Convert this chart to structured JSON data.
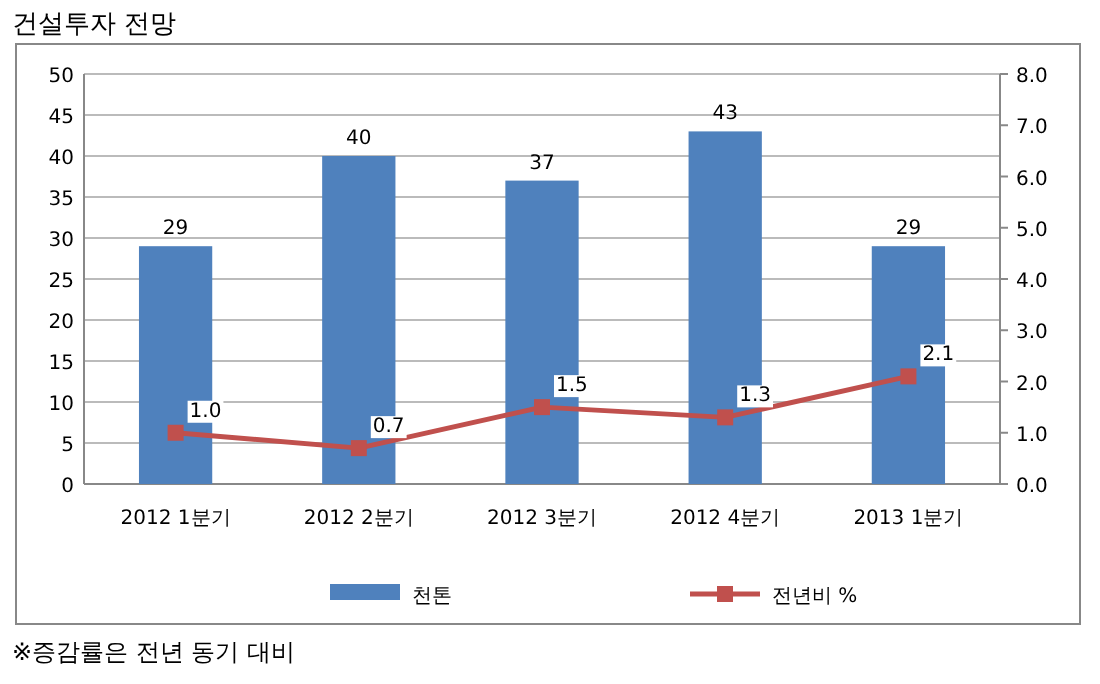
{
  "chart_data": {
    "type": "bar",
    "title": "건설투자 전망",
    "categories": [
      "2012 1분기",
      "2012 2분기",
      "2012 3분기",
      "2012 4분기",
      "2013 1분기"
    ],
    "series": [
      {
        "name": "천톤",
        "color": "#4f81bd",
        "values": [
          29,
          40,
          37,
          43,
          29
        ],
        "value_labels": [
          "29",
          "40",
          "37",
          "43",
          "29"
        ]
      },
      {
        "name": "전년비 %",
        "type": "line",
        "axis": "y2",
        "color": "#c0504d",
        "marker": "square",
        "values": [
          1.0,
          0.7,
          1.5,
          1.3,
          2.1
        ],
        "value_labels": [
          "1.0",
          "0.7",
          "1.5",
          "1.3",
          "2.1"
        ]
      }
    ],
    "ylim": [
      0,
      50
    ],
    "yticks": [
      0,
      5,
      10,
      15,
      20,
      25,
      30,
      35,
      40,
      45,
      50
    ],
    "y2lim": [
      0,
      8
    ],
    "y2ticks": [
      {
        "value": 0,
        "label": "0.0"
      },
      {
        "value": 1,
        "label": "1.0"
      },
      {
        "value": 2,
        "label": "2.0"
      },
      {
        "value": 3,
        "label": "3.0"
      },
      {
        "value": 4,
        "label": "4.0"
      },
      {
        "value": 5,
        "label": "5.0"
      },
      {
        "value": 6,
        "label": "6.0"
      },
      {
        "value": 7,
        "label": "7.0"
      },
      {
        "value": 8,
        "label": "8.0"
      }
    ],
    "grid": "y",
    "legend": "bottom",
    "annotations": [
      "※증감률은 전년 동기 대비"
    ]
  }
}
